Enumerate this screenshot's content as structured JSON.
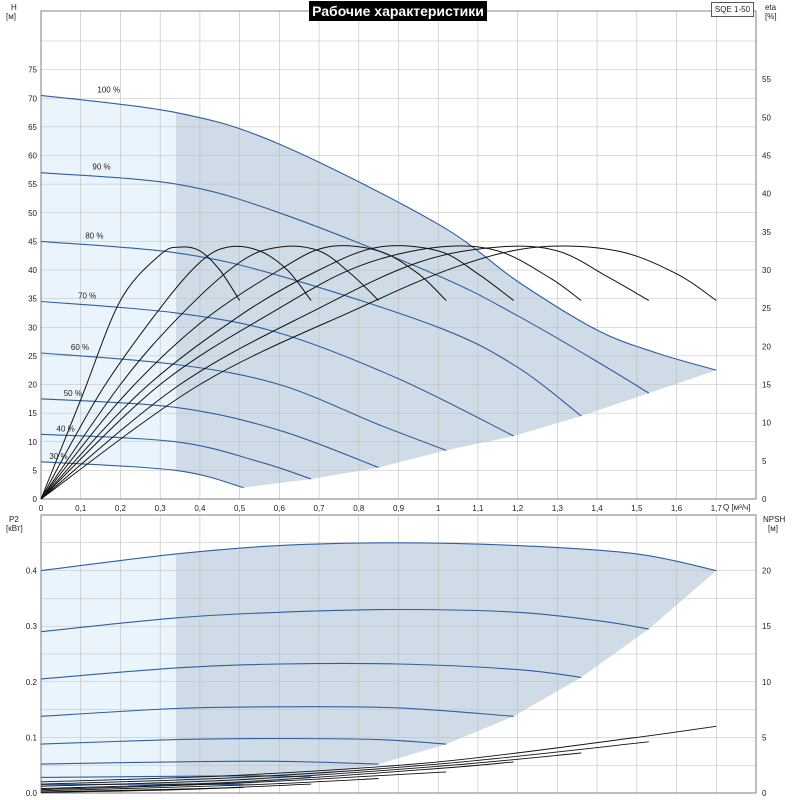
{
  "title": "Рабочие характеристики",
  "model": "SQE 1-50",
  "colors": {
    "curve": "#2e5fa3",
    "light_fill": "#eaf4fc",
    "dark_fill": "#cfdbe6",
    "black_curve": "#111111",
    "grid": "#bdbdbd"
  },
  "chart_data": [
    {
      "type": "line",
      "title": "Рабочие характеристики",
      "xlabel": "Q [м³/ч]",
      "ylabel": "H [м]",
      "y2label": "eta [%]",
      "xlim": [
        0,
        1.8
      ],
      "ylim": [
        0,
        80
      ],
      "y2lim": [
        0,
        60
      ],
      "xticks": [
        "0",
        "0,1",
        "0,2",
        "0,3",
        "0,4",
        "0,5",
        "0,6",
        "0,7",
        "0,8",
        "0,9",
        "1",
        "1,1",
        "1,2",
        "1,3",
        "1,4",
        "1,5",
        "1,6",
        "1,7"
      ],
      "yticks": [
        "0",
        "5",
        "10",
        "15",
        "20",
        "25",
        "30",
        "35",
        "40",
        "45",
        "50",
        "55",
        "60",
        "65",
        "70",
        "75"
      ],
      "y2ticks": [
        "0",
        "5",
        "10",
        "15",
        "20",
        "25",
        "30",
        "35",
        "40",
        "45",
        "50",
        "55"
      ],
      "grid": true,
      "recommended_range_start_q": 0.34,
      "series": [
        {
          "name": "100 %",
          "x": [
            0,
            0.34,
            0.6,
            1.0,
            1.2,
            1.4,
            1.55,
            1.7
          ],
          "y": [
            70.5,
            67.5,
            62,
            48,
            38,
            29.5,
            25.5,
            22.5
          ]
        },
        {
          "name": "90 %",
          "x": [
            0,
            0.34,
            0.6,
            1.0,
            1.2,
            1.4,
            1.53
          ],
          "y": [
            57,
            55,
            50,
            39,
            32,
            24,
            18.5
          ]
        },
        {
          "name": "80 %",
          "x": [
            0,
            0.34,
            0.6,
            1.0,
            1.2,
            1.36
          ],
          "y": [
            45,
            43,
            39,
            30,
            23,
            14.5
          ]
        },
        {
          "name": "70 %",
          "x": [
            0,
            0.34,
            0.6,
            0.9,
            1.19
          ],
          "y": [
            34.5,
            32.5,
            29,
            21,
            11
          ]
        },
        {
          "name": "60 %",
          "x": [
            0,
            0.34,
            0.6,
            0.85,
            1.02
          ],
          "y": [
            25.5,
            23.5,
            20,
            13,
            8.5
          ]
        },
        {
          "name": "50 %",
          "x": [
            0,
            0.34,
            0.6,
            0.85
          ],
          "y": [
            17.5,
            16,
            12,
            5.5
          ]
        },
        {
          "name": "40 %",
          "x": [
            0,
            0.34,
            0.55,
            0.68
          ],
          "y": [
            11.3,
            10,
            6.5,
            3.5
          ]
        },
        {
          "name": "30 %",
          "x": [
            0,
            0.34,
            0.51
          ],
          "y": [
            6.5,
            5,
            2
          ]
        }
      ],
      "eta_series": [
        {
          "x": [
            0,
            0.1,
            0.2,
            0.3,
            0.35,
            0.4,
            0.45,
            0.5
          ],
          "y": [
            0,
            13,
            26,
            32,
            33,
            32.5,
            30,
            26
          ]
        },
        {
          "x": [
            0,
            0.15,
            0.3,
            0.4,
            0.47,
            0.55,
            0.62,
            0.68
          ],
          "y": [
            0,
            14,
            25,
            31,
            33,
            32.5,
            30,
            26
          ]
        },
        {
          "x": [
            0,
            0.2,
            0.35,
            0.5,
            0.6,
            0.7,
            0.78,
            0.85
          ],
          "y": [
            0,
            15,
            24,
            31,
            33,
            32.5,
            29.5,
            26
          ]
        },
        {
          "x": [
            0,
            0.2,
            0.4,
            0.6,
            0.72,
            0.85,
            0.95,
            1.02
          ],
          "y": [
            0,
            13,
            23,
            30,
            33,
            32.5,
            29.5,
            26
          ]
        },
        {
          "x": [
            0,
            0.25,
            0.5,
            0.7,
            0.85,
            1.0,
            1.1,
            1.19
          ],
          "y": [
            0,
            14,
            24,
            30,
            33,
            32.5,
            29.5,
            26
          ]
        },
        {
          "x": [
            0,
            0.3,
            0.6,
            0.8,
            1.0,
            1.15,
            1.28,
            1.36
          ],
          "y": [
            0,
            15,
            25,
            30.5,
            33,
            32.5,
            29,
            26
          ]
        },
        {
          "x": [
            0,
            0.35,
            0.7,
            0.95,
            1.15,
            1.3,
            1.43,
            1.53
          ],
          "y": [
            0,
            15,
            25,
            31,
            33,
            32.5,
            29,
            26
          ]
        },
        {
          "x": [
            0,
            0.4,
            0.8,
            1.05,
            1.25,
            1.45,
            1.6,
            1.7
          ],
          "y": [
            0,
            15,
            25,
            30.5,
            33,
            32.5,
            29.5,
            26
          ]
        }
      ]
    },
    {
      "type": "line",
      "xlabel": "",
      "ylabel": "P2 [кВт]",
      "y2label": "NPSH [м]",
      "xlim": [
        0,
        1.8
      ],
      "ylim": [
        0,
        0.5
      ],
      "y2lim": [
        0,
        25
      ],
      "yticks": [
        "0.0",
        "0.1",
        "0.2",
        "0.3",
        "0.4"
      ],
      "y2ticks": [
        "0",
        "5",
        "10",
        "15",
        "20"
      ],
      "grid": true,
      "power_series": [
        {
          "x": [
            0,
            0.34,
            0.6,
            0.9,
            1.2,
            1.5,
            1.7
          ],
          "y": [
            0.4,
            0.43,
            0.445,
            0.45,
            0.445,
            0.43,
            0.4
          ]
        },
        {
          "x": [
            0,
            0.34,
            0.6,
            0.9,
            1.2,
            1.4,
            1.53
          ],
          "y": [
            0.29,
            0.315,
            0.325,
            0.33,
            0.325,
            0.31,
            0.295
          ]
        },
        {
          "x": [
            0,
            0.34,
            0.6,
            0.9,
            1.2,
            1.36
          ],
          "y": [
            0.205,
            0.225,
            0.232,
            0.232,
            0.222,
            0.208
          ]
        },
        {
          "x": [
            0,
            0.34,
            0.6,
            0.9,
            1.19
          ],
          "y": [
            0.138,
            0.152,
            0.155,
            0.153,
            0.138
          ]
        },
        {
          "x": [
            0,
            0.34,
            0.6,
            0.85,
            1.02
          ],
          "y": [
            0.088,
            0.096,
            0.098,
            0.096,
            0.088
          ]
        },
        {
          "x": [
            0,
            0.34,
            0.6,
            0.85
          ],
          "y": [
            0.052,
            0.056,
            0.057,
            0.052
          ]
        },
        {
          "x": [
            0,
            0.34,
            0.55,
            0.68
          ],
          "y": [
            0.028,
            0.03,
            0.031,
            0.029
          ]
        },
        {
          "x": [
            0,
            0.34,
            0.51
          ],
          "y": [
            0.015,
            0.016,
            0.015
          ]
        }
      ],
      "npsh_series": [
        {
          "x": [
            0,
            0.5,
            1.0,
            1.5,
            1.7
          ],
          "y": [
            1.0,
            1.6,
            2.8,
            5.0,
            6.0
          ]
        },
        {
          "x": [
            0,
            0.5,
            1.0,
            1.53
          ],
          "y": [
            0.8,
            1.4,
            2.6,
            4.6
          ]
        },
        {
          "x": [
            0,
            0.5,
            1.0,
            1.36
          ],
          "y": [
            0.6,
            1.2,
            2.4,
            3.6
          ]
        },
        {
          "x": [
            0,
            0.5,
            1.0,
            1.19
          ],
          "y": [
            0.4,
            1.0,
            2.2,
            2.8
          ]
        },
        {
          "x": [
            0,
            0.5,
            1.02
          ],
          "y": [
            0.3,
            0.9,
            1.9
          ]
        },
        {
          "x": [
            0,
            0.5,
            0.85
          ],
          "y": [
            0.2,
            0.7,
            1.3
          ]
        },
        {
          "x": [
            0,
            0.4,
            0.68
          ],
          "y": [
            0.1,
            0.4,
            0.8
          ]
        },
        {
          "x": [
            0,
            0.3,
            0.51
          ],
          "y": [
            0.05,
            0.25,
            0.5
          ]
        }
      ]
    }
  ],
  "labels": {
    "h_axis_1": "H",
    "h_axis_2": "[м]",
    "eta_axis_1": "eta",
    "eta_axis_2": "[%]",
    "q_axis": "Q [м³/ч]",
    "p2_axis_1": "P2",
    "p2_axis_2": "[кВт]",
    "npsh_axis_1": "NPSH",
    "npsh_axis_2": "[м]"
  }
}
